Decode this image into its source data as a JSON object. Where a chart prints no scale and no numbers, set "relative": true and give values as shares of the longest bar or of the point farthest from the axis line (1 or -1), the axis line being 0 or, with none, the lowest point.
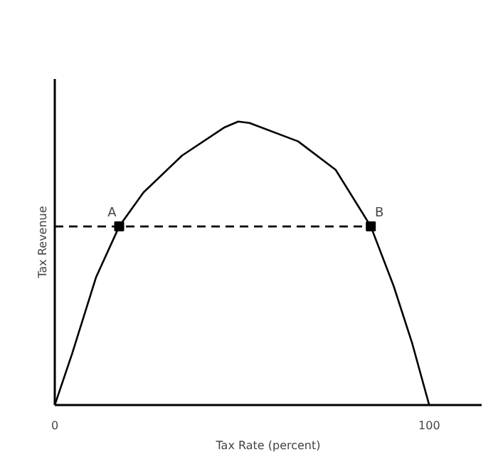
{
  "chart_data": {
    "type": "line",
    "relative": true,
    "xlabel": "Tax Rate (percent)",
    "ylabel": "Tax Revenue",
    "xlim": [
      0,
      114
    ],
    "xticks": [
      0,
      100
    ],
    "grid": false,
    "series": [
      {
        "color": "#000000",
        "line_style": "solid",
        "x": [
          0,
          4.6,
          11,
          17.2,
          23.7,
          34,
          45.4,
          49,
          52,
          65,
          75,
          84.4,
          90.5,
          95.4,
          100
        ],
        "values": [
          0,
          0.18,
          0.45,
          0.63,
          0.75,
          0.88,
          0.98,
          1.0,
          0.995,
          0.93,
          0.83,
          0.63,
          0.42,
          0.22,
          0
        ]
      },
      {
        "color": "#000000",
        "line_style": "dashed",
        "x": [
          0,
          84.4
        ],
        "values": [
          0.63,
          0.63
        ]
      },
      {
        "type": "scatter",
        "color": "#000000",
        "marker": "square",
        "x": [
          17.2,
          84.4
        ],
        "values": [
          0.63,
          0.63
        ]
      }
    ],
    "annotations": [
      {
        "text": "A",
        "x": 17.2,
        "y": 0.63
      },
      {
        "text": "B",
        "x": 84.4,
        "y": 0.63
      }
    ]
  }
}
